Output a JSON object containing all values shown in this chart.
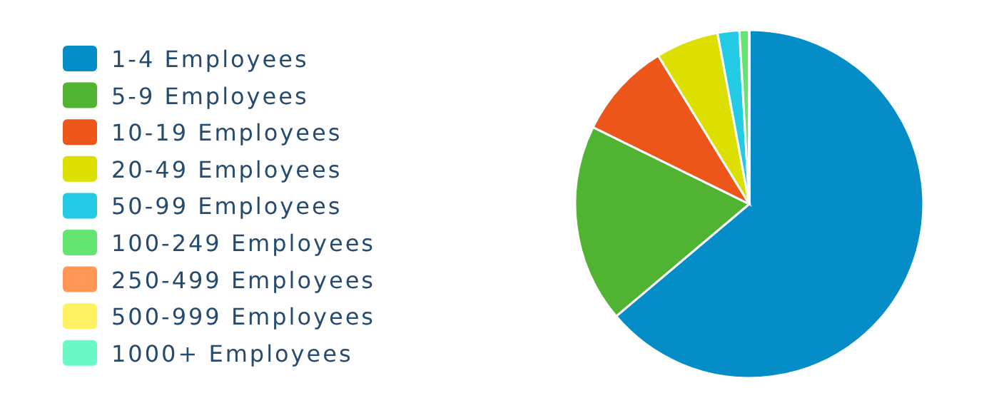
{
  "chart_data": {
    "type": "pie",
    "categories": [
      "1-4 Employees",
      "5-9 Employees",
      "10-19 Employees",
      "20-49 Employees",
      "50-99 Employees",
      "100-249 Employees",
      "250-499 Employees",
      "500-999 Employees",
      "1000+ Employees"
    ],
    "values": [
      63.4,
      18.3,
      8.9,
      5.8,
      2.0,
      0.9,
      null,
      null,
      null
    ],
    "colors": [
      "#058dc7",
      "#50b432",
      "#ed561b",
      "#dddf00",
      "#24cbe5",
      "#64e572",
      "#ff9655",
      "#fff263",
      "#6af9c4"
    ],
    "legend": "left"
  }
}
